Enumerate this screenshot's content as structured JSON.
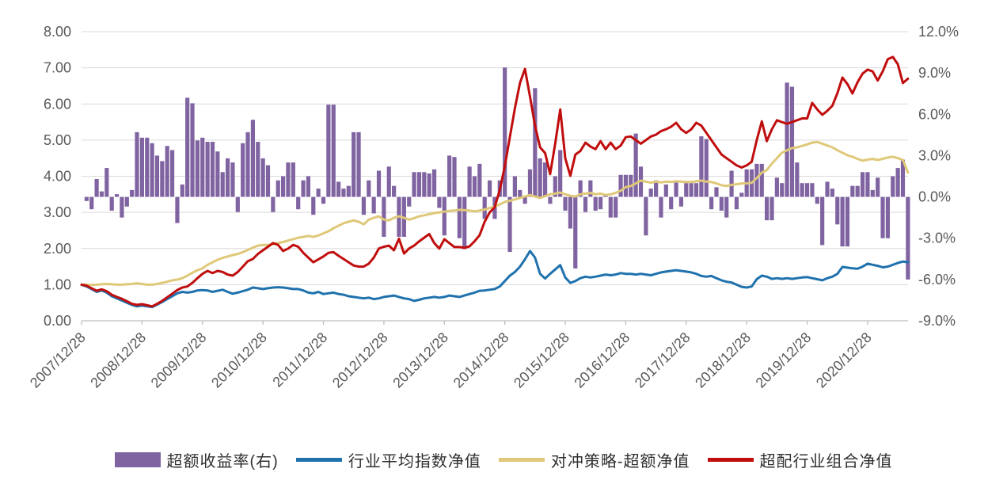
{
  "chart_data": {
    "type": "combo-bar-line",
    "title": "",
    "x_first_point_label": "2007/12/28",
    "frequency": "monthly",
    "x_tick_labels": [
      "2007/12/28",
      "2008/12/28",
      "2009/12/28",
      "2010/12/28",
      "2011/12/28",
      "2012/12/28",
      "2013/12/28",
      "2014/12/28",
      "2015/12/28",
      "2016/12/28",
      "2017/12/28",
      "2018/12/28",
      "2019/12/28",
      "2020/12/28"
    ],
    "left_axis": {
      "tick_labels": [
        "8.00",
        "7.00",
        "6.00",
        "5.00",
        "4.00",
        "3.00",
        "2.00",
        "1.00",
        "0.00"
      ],
      "min": 0,
      "max": 8,
      "step": 1
    },
    "right_axis": {
      "tick_labels": [
        "12.0%",
        "9.0%",
        "6.0%",
        "3.0%",
        "0.0%",
        "-3.0%",
        "-6.0%",
        "-9.0%"
      ],
      "min": -9,
      "max": 12,
      "step": 3
    },
    "grid": "horizontal",
    "legend_position": "bottom",
    "colors": {
      "bar": "#8064A2",
      "blue_line": "#1F72AD",
      "yellow_line": "#DFC878",
      "red_line": "#C00D0D",
      "gridline": "#D9D9D9",
      "axis_line": "#BFBFBF",
      "tick_text": "#595959",
      "legend_text": "#303030"
    },
    "series": [
      {
        "name": "超额收益率(右)",
        "type": "bar",
        "axis": "right",
        "unit": "%",
        "values": [
          -0.3,
          -0.9,
          1.3,
          0.4,
          2.1,
          -1.0,
          0.2,
          -1.5,
          -0.7,
          0.5,
          4.7,
          4.3,
          4.3,
          3.9,
          3.0,
          2.6,
          3.7,
          3.4,
          -1.9,
          0.9,
          7.2,
          6.8,
          4.1,
          4.3,
          4.0,
          4.0,
          3.3,
          1.8,
          2.8,
          2.5,
          -1.1,
          3.9,
          4.7,
          5.6,
          4.0,
          2.8,
          2.3,
          -1.1,
          1.2,
          1.5,
          2.5,
          2.5,
          -0.9,
          1.2,
          1.5,
          -1.3,
          0.6,
          -0.5,
          6.7,
          6.7,
          1.1,
          0.6,
          0.8,
          4.7,
          4.7,
          -1.3,
          1.2,
          -1.2,
          1.9,
          -2.9,
          2.2,
          0.8,
          -2.9,
          -2.9,
          -0.7,
          1.8,
          1.8,
          1.8,
          1.7,
          2.0,
          -0.8,
          -2.8,
          3.0,
          2.9,
          -3.0,
          -3.8,
          2.2,
          1.5,
          2.4,
          -1.6,
          1.2,
          -1.6,
          1.2,
          9.4,
          -4.0,
          1.5,
          0.5,
          -0.5,
          2.0,
          7.9,
          2.8,
          2.5,
          -0.5,
          1.5,
          3.4,
          -1.0,
          -2.3,
          -5.2,
          1.2,
          -1.1,
          1.2,
          -1.0,
          -0.9,
          0.1,
          -1.5,
          -1.5,
          1.6,
          1.6,
          1.6,
          4.6,
          2.2,
          -2.8,
          0.6,
          1.2,
          -1.5,
          0.9,
          -0.9,
          1.2,
          -0.7,
          1.0,
          1.0,
          1.0,
          4.4,
          4.2,
          -0.9,
          0.7,
          -1.0,
          -1.5,
          1.9,
          -0.9,
          0.3,
          2.0,
          2.0,
          2.4,
          2.4,
          -1.7,
          -1.7,
          1.4,
          1.0,
          8.3,
          8.0,
          2.5,
          1.0,
          1.0,
          1.0,
          -0.5,
          -3.5,
          1.1,
          0.6,
          -2.0,
          -3.6,
          -3.6,
          0.8,
          0.8,
          1.8,
          1.8,
          0.5,
          1.4,
          -3.0,
          -3.0,
          1.5,
          2.1,
          2.7,
          -6.0
        ]
      },
      {
        "name": "行业平均指数净值",
        "type": "line",
        "axis": "left",
        "values": [
          1.0,
          0.95,
          0.88,
          0.8,
          0.84,
          0.78,
          0.68,
          0.62,
          0.56,
          0.5,
          0.44,
          0.4,
          0.42,
          0.4,
          0.38,
          0.45,
          0.52,
          0.6,
          0.68,
          0.76,
          0.8,
          0.78,
          0.8,
          0.84,
          0.85,
          0.84,
          0.8,
          0.83,
          0.86,
          0.8,
          0.75,
          0.78,
          0.82,
          0.86,
          0.92,
          0.9,
          0.88,
          0.9,
          0.92,
          0.93,
          0.92,
          0.9,
          0.88,
          0.88,
          0.84,
          0.78,
          0.76,
          0.8,
          0.74,
          0.76,
          0.78,
          0.74,
          0.72,
          0.68,
          0.66,
          0.64,
          0.62,
          0.64,
          0.6,
          0.62,
          0.66,
          0.68,
          0.7,
          0.66,
          0.62,
          0.6,
          0.55,
          0.58,
          0.62,
          0.64,
          0.66,
          0.64,
          0.66,
          0.7,
          0.68,
          0.66,
          0.7,
          0.74,
          0.78,
          0.83,
          0.84,
          0.86,
          0.88,
          0.95,
          1.1,
          1.25,
          1.35,
          1.5,
          1.7,
          1.93,
          1.75,
          1.3,
          1.17,
          1.3,
          1.42,
          1.54,
          1.2,
          1.05,
          1.1,
          1.18,
          1.22,
          1.2,
          1.22,
          1.25,
          1.28,
          1.26,
          1.28,
          1.32,
          1.3,
          1.3,
          1.28,
          1.3,
          1.28,
          1.26,
          1.3,
          1.34,
          1.36,
          1.38,
          1.4,
          1.38,
          1.36,
          1.34,
          1.3,
          1.24,
          1.22,
          1.24,
          1.18,
          1.12,
          1.08,
          1.06,
          1.0,
          0.94,
          0.92,
          0.95,
          1.15,
          1.25,
          1.22,
          1.16,
          1.18,
          1.16,
          1.18,
          1.16,
          1.18,
          1.2,
          1.21,
          1.18,
          1.15,
          1.12,
          1.18,
          1.22,
          1.3,
          1.49,
          1.47,
          1.45,
          1.44,
          1.5,
          1.58,
          1.55,
          1.52,
          1.48,
          1.5,
          1.55,
          1.6,
          1.64,
          1.62
        ]
      },
      {
        "name": "对冲策略-超额净值",
        "type": "line",
        "axis": "left",
        "values": [
          1.0,
          1.0,
          0.99,
          1.0,
          1.01,
          1.02,
          1.01,
          1.0,
          1.0,
          1.01,
          1.02,
          1.04,
          1.02,
          1.0,
          1.0,
          1.02,
          1.05,
          1.08,
          1.12,
          1.14,
          1.18,
          1.25,
          1.33,
          1.4,
          1.45,
          1.55,
          1.62,
          1.69,
          1.74,
          1.78,
          1.82,
          1.85,
          1.9,
          1.96,
          2.02,
          2.08,
          2.1,
          2.1,
          2.12,
          2.15,
          2.18,
          2.22,
          2.26,
          2.3,
          2.32,
          2.35,
          2.32,
          2.36,
          2.42,
          2.48,
          2.56,
          2.63,
          2.7,
          2.74,
          2.78,
          2.74,
          2.67,
          2.8,
          2.85,
          2.89,
          2.8,
          2.78,
          2.85,
          2.89,
          2.85,
          2.8,
          2.84,
          2.89,
          2.92,
          2.95,
          2.98,
          3.0,
          3.02,
          3.04,
          3.05,
          3.07,
          3.06,
          3.05,
          3.03,
          3.05,
          3.08,
          3.12,
          3.16,
          3.22,
          3.29,
          3.32,
          3.36,
          3.4,
          3.44,
          3.48,
          3.44,
          3.4,
          3.45,
          3.5,
          3.52,
          3.55,
          3.5,
          3.46,
          3.44,
          3.5,
          3.52,
          3.54,
          3.5,
          3.52,
          3.48,
          3.5,
          3.54,
          3.6,
          3.7,
          3.73,
          3.8,
          3.88,
          3.85,
          3.82,
          3.85,
          3.83,
          3.85,
          3.84,
          3.86,
          3.85,
          3.84,
          3.84,
          3.86,
          3.88,
          3.85,
          3.84,
          3.8,
          3.75,
          3.73,
          3.76,
          3.78,
          3.8,
          3.8,
          3.82,
          3.95,
          4.1,
          4.17,
          4.35,
          4.5,
          4.65,
          4.72,
          4.78,
          4.8,
          4.84,
          4.88,
          4.93,
          4.95,
          4.9,
          4.85,
          4.8,
          4.72,
          4.65,
          4.58,
          4.54,
          4.48,
          4.43,
          4.46,
          4.48,
          4.45,
          4.48,
          4.52,
          4.54,
          4.5,
          4.45,
          4.1
        ]
      },
      {
        "name": "超配行业组合净值",
        "type": "line",
        "axis": "left",
        "values": [
          1.0,
          0.97,
          0.9,
          0.83,
          0.87,
          0.82,
          0.72,
          0.66,
          0.61,
          0.54,
          0.47,
          0.44,
          0.46,
          0.43,
          0.4,
          0.47,
          0.55,
          0.65,
          0.75,
          0.85,
          0.92,
          0.95,
          1.05,
          1.18,
          1.3,
          1.38,
          1.32,
          1.38,
          1.35,
          1.28,
          1.25,
          1.35,
          1.5,
          1.65,
          1.71,
          1.85,
          1.95,
          2.05,
          2.15,
          2.1,
          1.93,
          2.0,
          2.1,
          2.05,
          1.88,
          1.75,
          1.62,
          1.7,
          1.78,
          1.88,
          1.9,
          1.8,
          1.71,
          1.62,
          1.53,
          1.5,
          1.5,
          1.58,
          1.75,
          2.0,
          2.05,
          2.08,
          1.95,
          2.27,
          1.86,
          2.0,
          2.08,
          2.2,
          2.3,
          2.4,
          2.15,
          2.0,
          2.26,
          2.15,
          2.04,
          2.04,
          2.02,
          2.06,
          2.2,
          2.37,
          2.74,
          3.0,
          3.14,
          3.62,
          4.28,
          5.08,
          5.88,
          6.58,
          6.97,
          6.2,
          5.4,
          4.8,
          4.64,
          4.06,
          4.9,
          5.85,
          4.5,
          4.01,
          4.6,
          4.7,
          4.93,
          4.82,
          4.75,
          4.97,
          4.75,
          4.93,
          4.75,
          4.85,
          5.08,
          5.1,
          5.0,
          4.9,
          5.0,
          5.1,
          5.15,
          5.25,
          5.3,
          5.37,
          5.48,
          5.3,
          5.2,
          5.3,
          5.48,
          5.4,
          5.2,
          5.0,
          4.8,
          4.6,
          4.5,
          4.4,
          4.3,
          4.24,
          4.3,
          4.4,
          5.0,
          5.52,
          4.97,
          5.3,
          5.55,
          5.5,
          5.45,
          5.5,
          5.55,
          5.6,
          5.6,
          6.03,
          5.85,
          5.7,
          5.81,
          5.95,
          6.3,
          6.73,
          6.55,
          6.29,
          6.6,
          6.84,
          6.95,
          6.9,
          6.65,
          6.9,
          7.24,
          7.3,
          7.1,
          6.58,
          6.7
        ]
      }
    ]
  },
  "legend": {
    "items": [
      {
        "label": "超额收益率(右)",
        "swatch": "bar",
        "color": "#8064A2"
      },
      {
        "label": "行业平均指数净值",
        "swatch": "line",
        "color": "#1F72AD"
      },
      {
        "label": "对冲策略-超额净值",
        "swatch": "line",
        "color": "#DFC878"
      },
      {
        "label": "超配行业组合净值",
        "swatch": "line",
        "color": "#C00D0D"
      }
    ]
  }
}
